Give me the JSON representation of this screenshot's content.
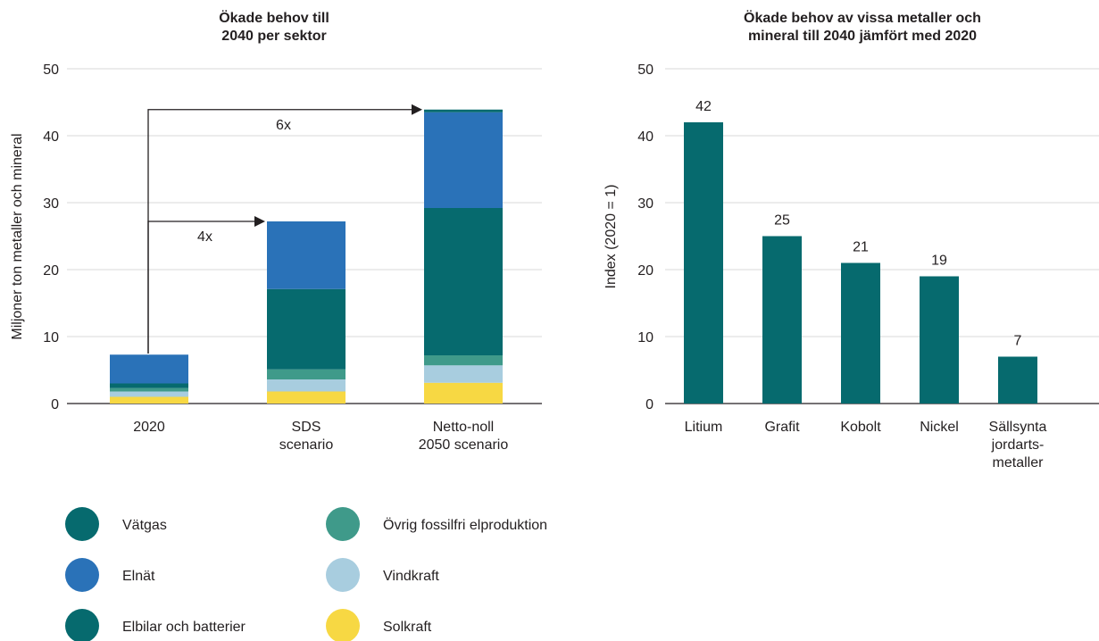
{
  "chart_data": [
    {
      "type": "bar",
      "stacked": true,
      "title": "Ökade behov till\n2040 per sektor",
      "ylabel": "Miljoner ton metaller och mineral",
      "ylim": [
        0,
        50
      ],
      "yticks": [
        0,
        10,
        20,
        30,
        40,
        50
      ],
      "grid": true,
      "categories": [
        "2020",
        "SDS\nscenario",
        "Netto-noll\n2050 scenario"
      ],
      "series": [
        {
          "name": "Solkraft",
          "color": "#f7d843",
          "values": [
            1.0,
            1.8,
            3.1
          ]
        },
        {
          "name": "Vindkraft",
          "color": "#a8cddf",
          "values": [
            0.8,
            1.8,
            2.6
          ]
        },
        {
          "name": "Övrig fossilfri elproduktion",
          "color": "#3f9a8a",
          "values": [
            0.5,
            1.5,
            1.5
          ]
        },
        {
          "name": "Elbilar och batterier",
          "color": "#066a6e",
          "values": [
            0.7,
            12.0,
            22.0
          ]
        },
        {
          "name": "Elnät",
          "color": "#2a72b8",
          "values": [
            4.3,
            10.1,
            14.3
          ]
        },
        {
          "name": "Vätgas",
          "color": "#066a6e",
          "values": [
            0.0,
            0.0,
            0.4
          ]
        }
      ],
      "annotations": [
        {
          "label": "4x",
          "from": "2020",
          "to": "SDS\nscenario",
          "y": 27.2
        },
        {
          "label": "6x",
          "from": "2020",
          "to": "Netto-noll\n2050 scenario",
          "y": 43.9
        }
      ]
    },
    {
      "type": "bar",
      "title": "Ökade behov av vissa metaller och\nmineral till 2040 jämfört med 2020",
      "ylabel": "Index (2020 = 1)",
      "ylim": [
        0,
        50
      ],
      "yticks": [
        0,
        10,
        20,
        30,
        40,
        50
      ],
      "grid": true,
      "color": "#066a6e",
      "categories": [
        "Litium",
        "Grafit",
        "Kobolt",
        "Nickel",
        "Sällsynta\njordarts-\nmetaller"
      ],
      "values": [
        42,
        25,
        21,
        19,
        7
      ],
      "data_labels": [
        "42",
        "25",
        "21",
        "19",
        "7"
      ]
    }
  ],
  "legend": [
    {
      "label": "Vätgas",
      "color": "#066a6e"
    },
    {
      "label": "Elnät",
      "color": "#2a72b8"
    },
    {
      "label": "Elbilar och batterier",
      "color": "#066a6e"
    },
    {
      "label": "Övrig fossilfri elproduktion",
      "color": "#3f9a8a"
    },
    {
      "label": "Vindkraft",
      "color": "#a8cddf"
    },
    {
      "label": "Solkraft",
      "color": "#f7d843"
    }
  ]
}
